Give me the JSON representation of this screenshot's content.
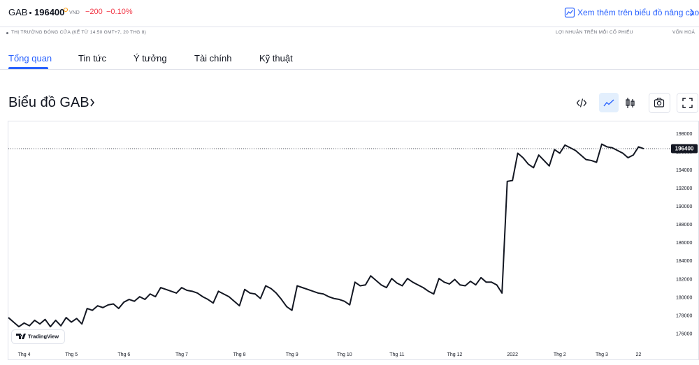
{
  "header": {
    "ticker": "GAB",
    "price": 196400,
    "currency": "VND",
    "change": "−200",
    "change_percent": "−0.10%",
    "advanced_link": "Xem thêm trên biểu đồ nâng cao"
  },
  "status": {
    "market": "THỊ TRƯỜNG ĐÓNG CỬA (KỂ TỪ 14:50 GMT+7, 20 THG 8)",
    "eps": "LỢI NHUẬN TRÊN MỖI CỔ PHIẾU",
    "market_cap": "VỐN HOÁ"
  },
  "tabs": [
    "Tổng quan",
    "Tin tức",
    "Ý tưởng",
    "Tài chính",
    "Kỹ thuật"
  ],
  "chart_data": {
    "type": "line",
    "title": "Biểu đồ GAB",
    "watermark": "TradingView",
    "color": "#131722",
    "grid": false,
    "ylim": [
      174500,
      199400
    ],
    "yticks": [
      176000,
      178000,
      180000,
      182000,
      184000,
      186000,
      188000,
      190000,
      192000,
      194000,
      196000,
      198000
    ],
    "categories": [
      null,
      null,
      null,
      "Thg 4",
      null,
      null,
      null,
      null,
      null,
      null,
      null,
      null,
      "Thg 5",
      null,
      null,
      null,
      null,
      null,
      null,
      null,
      null,
      null,
      "Thg 6",
      null,
      null,
      null,
      null,
      null,
      null,
      null,
      null,
      null,
      null,
      "Thg 7",
      null,
      null,
      null,
      null,
      null,
      null,
      null,
      null,
      null,
      null,
      "Thg 8",
      null,
      null,
      null,
      null,
      null,
      null,
      null,
      null,
      null,
      "Thg 9",
      null,
      null,
      null,
      null,
      null,
      null,
      null,
      null,
      null,
      "Thg 10",
      null,
      null,
      null,
      null,
      null,
      null,
      null,
      null,
      null,
      "Thg 11",
      null,
      null,
      null,
      null,
      null,
      null,
      null,
      null,
      null,
      null,
      "Thg 12",
      null,
      null,
      null,
      null,
      null,
      null,
      null,
      null,
      null,
      null,
      "2022",
      null,
      null,
      null,
      null,
      null,
      null,
      null,
      null,
      "Thg 2",
      null,
      null,
      null,
      null,
      null,
      null,
      null,
      "Thg 3",
      null,
      null,
      null,
      null,
      null,
      null,
      "22",
      null
    ],
    "values": [
      177800,
      177300,
      176800,
      177200,
      176900,
      177500,
      177100,
      177600,
      176800,
      177500,
      176900,
      177800,
      177300,
      177700,
      177100,
      178800,
      178600,
      179100,
      178900,
      179200,
      179300,
      178800,
      179500,
      179800,
      179600,
      180100,
      179800,
      180400,
      180100,
      181100,
      180900,
      180700,
      180500,
      181100,
      180800,
      180700,
      180500,
      180100,
      179800,
      179400,
      180700,
      180400,
      180100,
      179600,
      179100,
      180900,
      180500,
      180400,
      179900,
      181300,
      181000,
      180500,
      179800,
      179000,
      178600,
      181300,
      181100,
      180900,
      180700,
      180500,
      180400,
      180100,
      179900,
      179800,
      179600,
      179200,
      181700,
      181300,
      181400,
      182400,
      181900,
      181400,
      181100,
      182100,
      181600,
      181300,
      182100,
      181700,
      181400,
      181100,
      180700,
      180400,
      182100,
      181700,
      181500,
      182000,
      181400,
      181300,
      181800,
      181400,
      182200,
      181700,
      181700,
      181400,
      180500,
      192800,
      192900,
      195900,
      195400,
      194700,
      194300,
      195700,
      195100,
      194500,
      196300,
      195900,
      196800,
      196500,
      196200,
      195700,
      195200,
      195100,
      194900,
      196900,
      196600,
      196500,
      196200,
      195900,
      195400,
      195700,
      196600,
      196400
    ]
  }
}
